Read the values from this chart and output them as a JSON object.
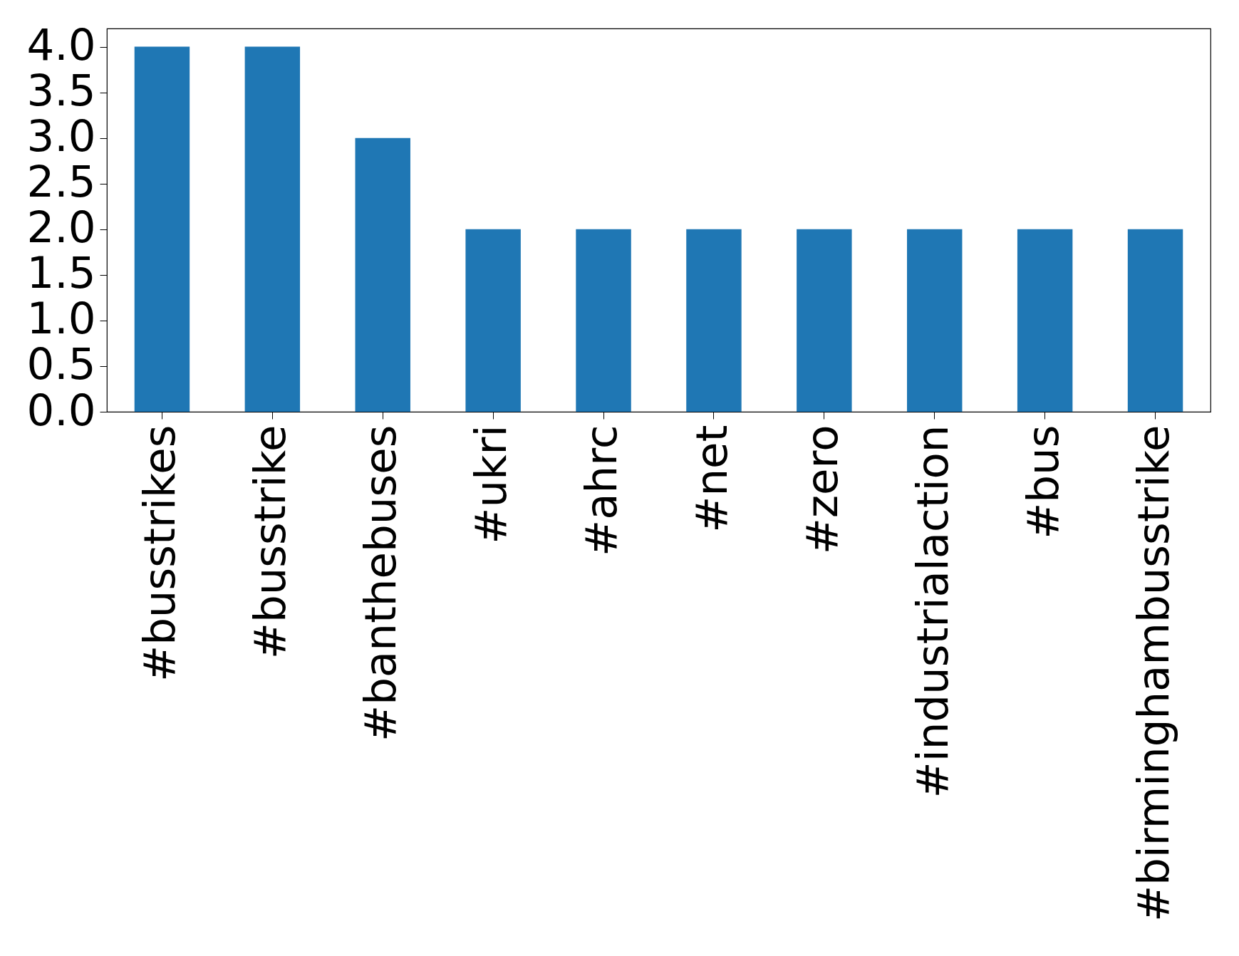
{
  "chart_data": {
    "type": "bar",
    "categories": [
      "#busstrikes",
      "#busstrike",
      "#banthebuses",
      "#ukri",
      "#ahrc",
      "#net",
      "#zero",
      "#industrialaction",
      "#bus",
      "#birminghambusstrike"
    ],
    "values": [
      4,
      4,
      3,
      2,
      2,
      2,
      2,
      2,
      2,
      2
    ],
    "color": "#1f77b4",
    "ylim": [
      0,
      4.2
    ],
    "yticks": [
      {
        "value": 0,
        "label": "0.0"
      },
      0.5,
      {
        "value": 1,
        "label": "1.0"
      },
      1.5,
      {
        "value": 2,
        "label": "2.0"
      },
      2.5,
      {
        "value": 3,
        "label": "3.0"
      },
      3.5,
      {
        "value": 4,
        "label": "4.0"
      }
    ],
    "grid": false
  }
}
